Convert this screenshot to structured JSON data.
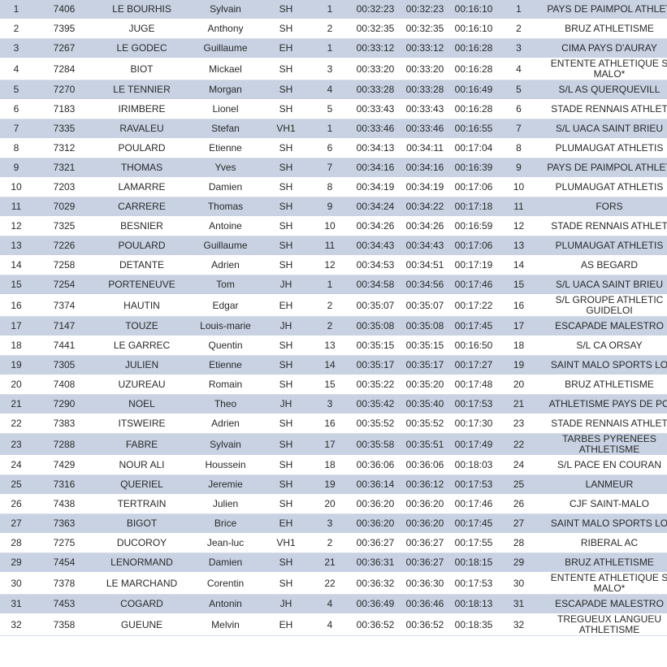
{
  "table": {
    "rows": [
      [
        "1",
        "7406",
        "LE BOURHIS",
        "Sylvain",
        "SH",
        "1",
        "00:32:23",
        "00:32:23",
        "00:16:10",
        "1",
        "PAYS DE PAIMPOL ATHLET"
      ],
      [
        "2",
        "7395",
        "JUGE",
        "Anthony",
        "SH",
        "2",
        "00:32:35",
        "00:32:35",
        "00:16:10",
        "2",
        "BRUZ ATHLETISME"
      ],
      [
        "3",
        "7267",
        "LE GODEC",
        "Guillaume",
        "EH",
        "1",
        "00:33:12",
        "00:33:12",
        "00:16:28",
        "3",
        "CIMA PAYS D'AURAY"
      ],
      [
        "4",
        "7284",
        "BIOT",
        "Mickael",
        "SH",
        "3",
        "00:33:20",
        "00:33:20",
        "00:16:28",
        "4",
        "ENTENTE ATHLETIQUE S\nMALO*"
      ],
      [
        "5",
        "7270",
        "LE TENNIER",
        "Morgan",
        "SH",
        "4",
        "00:33:28",
        "00:33:28",
        "00:16:49",
        "5",
        "S/L AS QUERQUEVILL"
      ],
      [
        "6",
        "7183",
        "IRIMBERE",
        "Lionel",
        "SH",
        "5",
        "00:33:43",
        "00:33:43",
        "00:16:28",
        "6",
        "STADE RENNAIS ATHLET"
      ],
      [
        "7",
        "7335",
        "RAVALEU",
        "Stefan",
        "VH1",
        "1",
        "00:33:46",
        "00:33:46",
        "00:16:55",
        "7",
        "S/L UACA SAINT BRIEU"
      ],
      [
        "8",
        "7312",
        "POULARD",
        "Etienne",
        "SH",
        "6",
        "00:34:13",
        "00:34:11",
        "00:17:04",
        "8",
        "PLUMAUGAT ATHLETIS"
      ],
      [
        "9",
        "7321",
        "THOMAS",
        "Yves",
        "SH",
        "7",
        "00:34:16",
        "00:34:16",
        "00:16:39",
        "9",
        "PAYS DE PAIMPOL ATHLET"
      ],
      [
        "10",
        "7203",
        "LAMARRE",
        "Damien",
        "SH",
        "8",
        "00:34:19",
        "00:34:19",
        "00:17:06",
        "10",
        "PLUMAUGAT ATHLETIS"
      ],
      [
        "11",
        "7029",
        "CARRERE",
        "Thomas",
        "SH",
        "9",
        "00:34:24",
        "00:34:22",
        "00:17:18",
        "11",
        "FORS"
      ],
      [
        "12",
        "7325",
        "BESNIER",
        "Antoine",
        "SH",
        "10",
        "00:34:26",
        "00:34:26",
        "00:16:59",
        "12",
        "STADE RENNAIS ATHLET"
      ],
      [
        "13",
        "7226",
        "POULARD",
        "Guillaume",
        "SH",
        "11",
        "00:34:43",
        "00:34:43",
        "00:17:06",
        "13",
        "PLUMAUGAT ATHLETIS"
      ],
      [
        "14",
        "7258",
        "DETANTE",
        "Adrien",
        "SH",
        "12",
        "00:34:53",
        "00:34:51",
        "00:17:19",
        "14",
        "AS BEGARD"
      ],
      [
        "15",
        "7254",
        "PORTENEUVE",
        "Tom",
        "JH",
        "1",
        "00:34:58",
        "00:34:56",
        "00:17:46",
        "15",
        "S/L UACA SAINT BRIEU"
      ],
      [
        "16",
        "7374",
        "HAUTIN",
        "Edgar",
        "EH",
        "2",
        "00:35:07",
        "00:35:07",
        "00:17:22",
        "16",
        "S/L GROUPE ATHLETIC\nGUIDELOI"
      ],
      [
        "17",
        "7147",
        "TOUZE",
        "Louis-marie",
        "JH",
        "2",
        "00:35:08",
        "00:35:08",
        "00:17:45",
        "17",
        "ESCAPADE MALESTRO"
      ],
      [
        "18",
        "7441",
        "LE GARREC",
        "Quentin",
        "SH",
        "13",
        "00:35:15",
        "00:35:15",
        "00:16:50",
        "18",
        "S/L CA ORSAY"
      ],
      [
        "19",
        "7305",
        "JULIEN",
        "Etienne",
        "SH",
        "14",
        "00:35:17",
        "00:35:17",
        "00:17:27",
        "19",
        "SAINT MALO SPORTS LO"
      ],
      [
        "20",
        "7408",
        "UZUREAU",
        "Romain",
        "SH",
        "15",
        "00:35:22",
        "00:35:20",
        "00:17:48",
        "20",
        "BRUZ ATHLETISME"
      ],
      [
        "21",
        "7290",
        "NOEL",
        "Theo",
        "JH",
        "3",
        "00:35:42",
        "00:35:40",
        "00:17:53",
        "21",
        "ATHLETISME PAYS DE PO"
      ],
      [
        "22",
        "7383",
        "ITSWEIRE",
        "Adrien",
        "SH",
        "16",
        "00:35:52",
        "00:35:52",
        "00:17:30",
        "23",
        "STADE RENNAIS ATHLET"
      ],
      [
        "23",
        "7288",
        "FABRE",
        "Sylvain",
        "SH",
        "17",
        "00:35:58",
        "00:35:51",
        "00:17:49",
        "22",
        "TARBES PYRENEES\nATHLETISME"
      ],
      [
        "24",
        "7429",
        "NOUR ALI",
        "Houssein",
        "SH",
        "18",
        "00:36:06",
        "00:36:06",
        "00:18:03",
        "24",
        "S/L PACE EN COURAN"
      ],
      [
        "25",
        "7316",
        "QUERIEL",
        "Jeremie",
        "SH",
        "19",
        "00:36:14",
        "00:36:12",
        "00:17:53",
        "25",
        "LANMEUR"
      ],
      [
        "26",
        "7438",
        "TERTRAIN",
        "Julien",
        "SH",
        "20",
        "00:36:20",
        "00:36:20",
        "00:17:46",
        "26",
        "CJF SAINT-MALO"
      ],
      [
        "27",
        "7363",
        "BIGOT",
        "Brice",
        "EH",
        "3",
        "00:36:20",
        "00:36:20",
        "00:17:45",
        "27",
        "SAINT MALO SPORTS LO"
      ],
      [
        "28",
        "7275",
        "DUCOROY",
        "Jean-luc",
        "VH1",
        "2",
        "00:36:27",
        "00:36:27",
        "00:17:55",
        "28",
        "RIBERAL AC"
      ],
      [
        "29",
        "7454",
        "LENORMAND",
        "Damien",
        "SH",
        "21",
        "00:36:31",
        "00:36:27",
        "00:18:15",
        "29",
        "BRUZ ATHLETISME"
      ],
      [
        "30",
        "7378",
        "LE MARCHAND",
        "Corentin",
        "SH",
        "22",
        "00:36:32",
        "00:36:30",
        "00:17:53",
        "30",
        "ENTENTE ATHLETIQUE S\nMALO*"
      ],
      [
        "31",
        "7453",
        "COGARD",
        "Antonin",
        "JH",
        "4",
        "00:36:49",
        "00:36:46",
        "00:18:13",
        "31",
        "ESCAPADE MALESTRO"
      ],
      [
        "32",
        "7358",
        "GUEUNE",
        "Melvin",
        "EH",
        "4",
        "00:36:52",
        "00:36:52",
        "00:18:35",
        "32",
        "TREGUEUX LANGUEU\nATHLETISME"
      ]
    ]
  }
}
